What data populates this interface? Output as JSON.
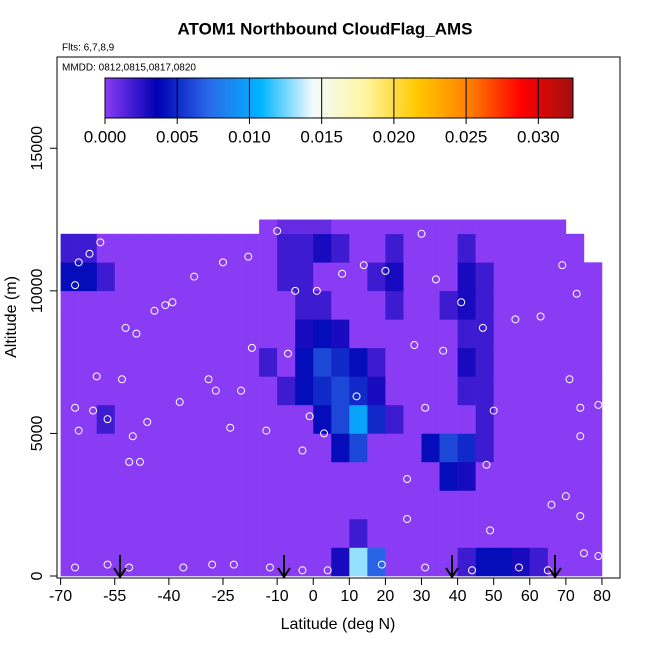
{
  "chart_data": {
    "type": "heatmap",
    "title": "ATOM1 Northbound CloudFlag_AMS",
    "annotations": [
      "Flts: 6,7,8,9",
      "MMDD: 0812,0815,0817,0820"
    ],
    "x_label": "Latitude (deg N)",
    "y_label": "Altitude (m)",
    "xlim": [
      -71,
      85
    ],
    "ylim": [
      -70,
      18200
    ],
    "xticks": [
      -70,
      -55,
      -40,
      -25,
      -10,
      0,
      10,
      20,
      30,
      40,
      50,
      60,
      70,
      80
    ],
    "yticks": [
      0,
      5000,
      10000,
      15000
    ],
    "x_bins": [
      -70,
      -65,
      -60,
      -55,
      -50,
      -45,
      -40,
      -35,
      -30,
      -25,
      -20,
      -15,
      -10,
      -5,
      0,
      5,
      10,
      15,
      20,
      25,
      30,
      35,
      40,
      45,
      50,
      55,
      60,
      65,
      70,
      75,
      80
    ],
    "y_bins": [
      0,
      1000,
      2000,
      3000,
      4000,
      5000,
      6000,
      7000,
      8000,
      9000,
      10000,
      11000,
      12000,
      12500
    ],
    "z": [
      [
        0,
        0,
        0,
        0,
        0,
        0,
        0,
        0,
        0,
        0,
        0,
        0,
        0,
        0,
        0,
        0.003,
        0.013,
        0.007,
        0,
        0,
        0,
        0,
        0.002,
        0.004,
        0.004,
        0.003,
        0.002,
        0,
        0,
        0
      ],
      [
        0,
        0,
        0,
        0,
        0,
        0,
        0,
        0,
        0,
        0,
        0,
        0,
        0,
        0,
        0,
        0,
        0.002,
        0,
        0,
        0,
        0,
        0,
        0,
        0,
        0,
        0,
        0,
        0,
        0,
        0
      ],
      [
        0,
        0,
        0,
        0,
        0,
        0,
        0,
        0,
        0,
        0,
        0,
        0,
        0,
        0,
        0,
        0,
        0,
        0,
        0,
        0,
        0,
        0,
        0,
        0,
        0,
        0,
        0,
        0,
        0,
        0
      ],
      [
        0,
        0,
        0,
        0,
        0,
        0,
        0,
        0,
        0,
        0,
        0,
        0,
        0,
        0,
        0,
        0,
        0,
        0,
        0,
        0,
        0,
        0.004,
        0.003,
        0,
        0,
        0,
        0,
        0,
        0,
        0
      ],
      [
        0,
        0,
        0,
        0,
        0,
        0,
        0,
        0,
        0,
        0,
        0,
        0,
        0,
        0,
        0,
        0.004,
        0.006,
        0,
        0,
        0,
        0.004,
        0.006,
        0.005,
        0.002,
        0,
        0,
        0,
        0,
        0,
        0
      ],
      [
        0,
        0,
        0.002,
        0,
        0,
        0,
        0,
        0,
        0,
        0,
        0,
        0,
        0,
        0,
        0.004,
        0.006,
        0.01,
        0.005,
        0.002,
        0,
        0,
        0,
        0,
        0.002,
        0,
        0,
        0,
        0,
        0,
        0
      ],
      [
        0,
        0,
        0,
        0,
        0,
        0,
        0,
        0,
        0,
        0,
        0,
        0,
        0.002,
        0.004,
        0.005,
        0.006,
        0.005,
        0.003,
        0,
        0,
        0,
        0,
        0.002,
        0.002,
        0,
        0,
        0,
        0,
        0,
        0
      ],
      [
        0,
        0,
        0,
        0,
        0,
        0,
        0,
        0,
        0,
        0,
        0,
        0.002,
        0,
        0.004,
        0.006,
        0.005,
        0.004,
        0.002,
        0,
        0,
        0,
        0,
        0.003,
        0.002,
        0,
        0,
        0,
        0,
        0,
        0
      ],
      [
        0,
        0,
        0,
        0,
        0,
        0,
        0,
        0,
        0,
        0,
        0,
        0,
        0,
        0.003,
        0.004,
        0.003,
        0,
        0,
        0,
        0,
        0,
        0,
        0.002,
        0.002,
        0,
        0,
        0,
        0,
        0,
        0
      ],
      [
        0,
        0,
        0,
        0,
        0,
        0,
        0,
        0,
        0,
        0,
        0,
        0,
        0,
        0.002,
        0.002,
        0,
        0,
        0,
        0.002,
        0,
        0,
        0.002,
        0.003,
        0.002,
        0,
        0,
        0,
        0,
        0,
        0
      ],
      [
        0.004,
        0.004,
        0.002,
        0,
        0,
        0,
        0,
        0,
        0,
        0,
        0,
        0,
        0.002,
        0.002,
        0,
        0,
        0,
        0.002,
        0.003,
        0,
        0,
        0,
        0.003,
        0.002,
        0,
        0,
        0,
        0,
        0,
        0
      ],
      [
        0.002,
        0.002,
        0,
        0,
        0,
        0,
        0,
        0,
        0,
        0,
        0,
        0,
        0.002,
        0.002,
        0.003,
        0.002,
        0,
        0,
        0.002,
        0,
        0,
        0,
        0.002,
        0,
        0,
        0,
        0,
        0,
        0,
        null
      ],
      [
        null,
        null,
        null,
        null,
        null,
        null,
        null,
        null,
        null,
        null,
        null,
        0,
        0.001,
        0.001,
        0.001,
        0,
        0,
        0,
        0,
        0,
        0,
        0,
        0,
        0,
        0,
        0,
        0,
        0,
        null,
        null
      ]
    ],
    "colorbar": {
      "colors": [
        "#8a3cf5",
        "#0000b4",
        "#2a6ae8",
        "#00b4ff",
        "#f4fbff",
        "#fff5a0",
        "#ffc800",
        "#ff8000",
        "#ff0000",
        "#a01010"
      ],
      "lim": [
        0,
        0.0324
      ],
      "ticks": [
        {
          "value": 0,
          "label": "0.000"
        },
        0.005,
        {
          "value": 0.01,
          "label": "0.010"
        },
        0.015,
        {
          "value": 0.02,
          "label": "0.020"
        },
        0.025,
        {
          "value": 0.03,
          "label": "0.030"
        }
      ]
    },
    "points": {
      "color": "#ffffff",
      "x": [
        -65,
        -62,
        -59,
        -66,
        -66,
        -65,
        -61,
        -60,
        -57,
        -53,
        -52,
        -49,
        -50,
        -51,
        -48,
        -46,
        -44,
        -41,
        -39,
        -37,
        -33,
        -29,
        -27,
        -25,
        -23,
        -20,
        -18,
        -17,
        -13,
        -10,
        -7,
        -5,
        -3,
        -1,
        1,
        3,
        8,
        12,
        14,
        20,
        28,
        30,
        31,
        34,
        36,
        41,
        47,
        50,
        48,
        49,
        56,
        63,
        66,
        70,
        69,
        73,
        71,
        74,
        79,
        74,
        74,
        75,
        26,
        26,
        79,
        -66,
        -57,
        -51,
        -36,
        -28,
        -22,
        -12,
        -3,
        4,
        19,
        31,
        44,
        57,
        65
      ],
      "y": [
        11000,
        11300,
        11700,
        10200,
        5900,
        5100,
        5800,
        7000,
        5500,
        6900,
        8700,
        8500,
        4900,
        4000,
        4000,
        5400,
        9300,
        9500,
        9600,
        6100,
        10500,
        6900,
        6500,
        11000,
        5200,
        6500,
        11200,
        8000,
        5100,
        12100,
        7800,
        10000,
        4400,
        5600,
        10000,
        5000,
        10600,
        6300,
        10900,
        10700,
        8100,
        12000,
        5900,
        10400,
        7900,
        9600,
        8700,
        5800,
        3900,
        1600,
        9000,
        9100,
        2500,
        2800,
        10900,
        9900,
        6900,
        5900,
        6000,
        4900,
        2100,
        800,
        2000,
        3400,
        700,
        300,
        400,
        300,
        300,
        400,
        400,
        300,
        200,
        200,
        400,
        300,
        200,
        300,
        200
      ]
    }
  }
}
